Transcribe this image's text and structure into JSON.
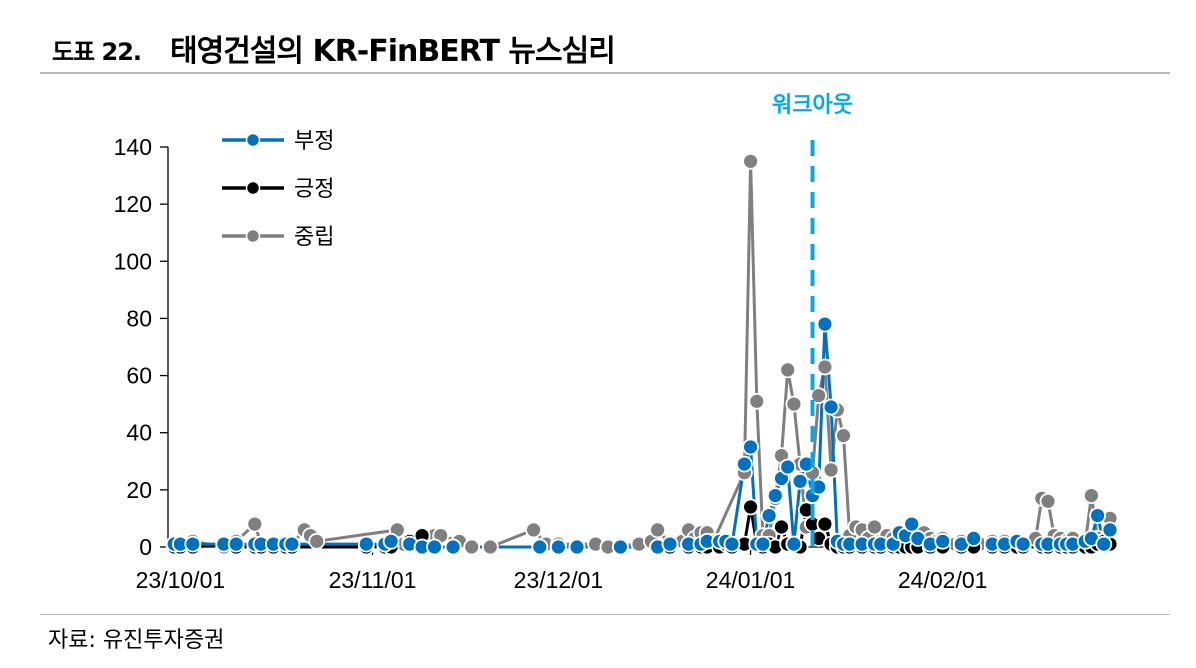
{
  "figure": {
    "number": "도표 22.",
    "title": "태영건설의 KR-FinBERT 뉴스심리",
    "source": "자료: 유진투자증권"
  },
  "colors": {
    "negative": "#0070c0",
    "positive": "#000000",
    "neutral": "#7f7f7f",
    "annotation": "#0aa8e0"
  },
  "chart_data": {
    "type": "line",
    "ylim": [
      0,
      140
    ],
    "yticks": [
      0,
      20,
      40,
      60,
      80,
      100,
      120,
      140
    ],
    "xlim": [
      "2023-09-29",
      "2024-02-28"
    ],
    "xticks": [
      {
        "date": "2023-10-01",
        "label": "23/10/01"
      },
      {
        "date": "2023-11-01",
        "label": "23/11/01"
      },
      {
        "date": "2023-12-01",
        "label": "23/12/01"
      },
      {
        "date": "2024-01-01",
        "label": "24/01/01"
      },
      {
        "date": "2024-02-01",
        "label": "24/02/01"
      }
    ],
    "legend_position": "top-left",
    "annotation": {
      "label": "워크아웃",
      "date": "2024-01-11",
      "style": "dashed-vertical"
    },
    "series": [
      {
        "name": "부정",
        "color": "#0070c0",
        "points": [
          [
            "2023-09-30",
            1
          ],
          [
            "2023-10-01",
            1
          ],
          [
            "2023-10-03",
            1
          ],
          [
            "2023-10-08",
            1
          ],
          [
            "2023-10-10",
            1
          ],
          [
            "2023-10-13",
            1
          ],
          [
            "2023-10-14",
            1
          ],
          [
            "2023-10-16",
            1
          ],
          [
            "2023-10-18",
            1
          ],
          [
            "2023-10-19",
            1
          ],
          [
            "2023-10-31",
            1
          ],
          [
            "2023-11-03",
            1
          ],
          [
            "2023-11-04",
            2
          ],
          [
            "2023-11-07",
            1
          ],
          [
            "2023-11-09",
            0
          ],
          [
            "2023-11-11",
            0
          ],
          [
            "2023-11-14",
            0
          ],
          [
            "2023-11-28",
            0
          ],
          [
            "2023-12-01",
            0
          ],
          [
            "2023-12-04",
            0
          ],
          [
            "2023-12-11",
            0
          ],
          [
            "2023-12-17",
            0
          ],
          [
            "2023-12-19",
            1
          ],
          [
            "2023-12-22",
            1
          ],
          [
            "2023-12-24",
            1
          ],
          [
            "2023-12-25",
            2
          ],
          [
            "2023-12-27",
            2
          ],
          [
            "2023-12-28",
            2
          ],
          [
            "2023-12-29",
            1
          ],
          [
            "2023-12-31",
            29
          ],
          [
            "2024-01-01",
            35
          ],
          [
            "2024-01-02",
            1
          ],
          [
            "2024-01-03",
            1
          ],
          [
            "2024-01-04",
            11
          ],
          [
            "2024-01-05",
            18
          ],
          [
            "2024-01-06",
            24
          ],
          [
            "2024-01-07",
            28
          ],
          [
            "2024-01-08",
            1
          ],
          [
            "2024-01-09",
            23
          ],
          [
            "2024-01-10",
            29
          ],
          [
            "2024-01-11",
            18
          ],
          [
            "2024-01-12",
            21
          ],
          [
            "2024-01-13",
            78
          ],
          [
            "2024-01-14",
            49
          ],
          [
            "2024-01-15",
            2
          ],
          [
            "2024-01-16",
            1
          ],
          [
            "2024-01-17",
            1
          ],
          [
            "2024-01-19",
            1
          ],
          [
            "2024-01-21",
            1
          ],
          [
            "2024-01-22",
            1
          ],
          [
            "2024-01-24",
            1
          ],
          [
            "2024-01-25",
            5
          ],
          [
            "2024-01-26",
            4
          ],
          [
            "2024-01-27",
            8
          ],
          [
            "2024-01-28",
            3
          ],
          [
            "2024-01-30",
            1
          ],
          [
            "2024-02-01",
            2
          ],
          [
            "2024-02-04",
            1
          ],
          [
            "2024-02-06",
            3
          ],
          [
            "2024-02-09",
            1
          ],
          [
            "2024-02-11",
            1
          ],
          [
            "2024-02-13",
            2
          ],
          [
            "2024-02-14",
            1
          ],
          [
            "2024-02-17",
            1
          ],
          [
            "2024-02-18",
            1
          ],
          [
            "2024-02-20",
            1
          ],
          [
            "2024-02-21",
            1
          ],
          [
            "2024-02-22",
            1
          ],
          [
            "2024-02-24",
            2
          ],
          [
            "2024-02-25",
            3
          ],
          [
            "2024-02-26",
            11
          ],
          [
            "2024-02-27",
            1
          ],
          [
            "2024-02-28",
            6
          ]
        ]
      },
      {
        "name": "긍정",
        "color": "#000000",
        "points": [
          [
            "2023-09-30",
            0
          ],
          [
            "2023-10-01",
            0
          ],
          [
            "2023-10-03",
            0
          ],
          [
            "2023-10-08",
            1
          ],
          [
            "2023-10-10",
            0
          ],
          [
            "2023-10-13",
            0
          ],
          [
            "2023-10-14",
            0
          ],
          [
            "2023-10-16",
            0
          ],
          [
            "2023-10-18",
            0
          ],
          [
            "2023-10-19",
            0
          ],
          [
            "2023-10-31",
            0
          ],
          [
            "2023-11-03",
            0
          ],
          [
            "2023-11-04",
            0
          ],
          [
            "2023-11-07",
            2
          ],
          [
            "2023-11-09",
            4
          ],
          [
            "2023-11-11",
            0
          ],
          [
            "2023-11-14",
            0
          ],
          [
            "2023-11-28",
            0
          ],
          [
            "2023-12-01",
            0
          ],
          [
            "2023-12-04",
            0
          ],
          [
            "2023-12-11",
            0
          ],
          [
            "2023-12-17",
            0
          ],
          [
            "2023-12-19",
            0
          ],
          [
            "2023-12-22",
            0
          ],
          [
            "2023-12-24",
            0
          ],
          [
            "2023-12-25",
            0
          ],
          [
            "2023-12-27",
            0
          ],
          [
            "2023-12-28",
            1
          ],
          [
            "2023-12-29",
            0
          ],
          [
            "2023-12-31",
            1
          ],
          [
            "2024-01-01",
            14
          ],
          [
            "2024-01-02",
            1
          ],
          [
            "2024-01-03",
            0
          ],
          [
            "2024-01-04",
            1
          ],
          [
            "2024-01-05",
            0
          ],
          [
            "2024-01-06",
            7
          ],
          [
            "2024-01-07",
            1
          ],
          [
            "2024-01-08",
            1
          ],
          [
            "2024-01-09",
            0
          ],
          [
            "2024-01-10",
            13
          ],
          [
            "2024-01-11",
            8
          ],
          [
            "2024-01-12",
            3
          ],
          [
            "2024-01-13",
            8
          ],
          [
            "2024-01-14",
            1
          ],
          [
            "2024-01-15",
            0
          ],
          [
            "2024-01-16",
            0
          ],
          [
            "2024-01-17",
            0
          ],
          [
            "2024-01-19",
            0
          ],
          [
            "2024-01-21",
            0
          ],
          [
            "2024-01-22",
            0
          ],
          [
            "2024-01-24",
            0
          ],
          [
            "2024-01-25",
            0
          ],
          [
            "2024-01-26",
            0
          ],
          [
            "2024-01-27",
            0
          ],
          [
            "2024-01-28",
            0
          ],
          [
            "2024-01-30",
            0
          ],
          [
            "2024-02-01",
            0
          ],
          [
            "2024-02-04",
            0
          ],
          [
            "2024-02-06",
            0
          ],
          [
            "2024-02-09",
            0
          ],
          [
            "2024-02-11",
            0
          ],
          [
            "2024-02-13",
            0
          ],
          [
            "2024-02-14",
            0
          ],
          [
            "2024-02-17",
            0
          ],
          [
            "2024-02-18",
            0
          ],
          [
            "2024-02-20",
            0
          ],
          [
            "2024-02-21",
            0
          ],
          [
            "2024-02-22",
            0
          ],
          [
            "2024-02-24",
            0
          ],
          [
            "2024-02-25",
            0
          ],
          [
            "2024-02-26",
            1
          ],
          [
            "2024-02-27",
            2
          ],
          [
            "2024-02-28",
            1
          ]
        ]
      },
      {
        "name": "중립",
        "color": "#7f7f7f",
        "points": [
          [
            "2023-09-30",
            1
          ],
          [
            "2023-10-01",
            0
          ],
          [
            "2023-10-03",
            2
          ],
          [
            "2023-10-08",
            0
          ],
          [
            "2023-10-10",
            2
          ],
          [
            "2023-10-13",
            8
          ],
          [
            "2023-10-14",
            1
          ],
          [
            "2023-10-16",
            1
          ],
          [
            "2023-10-18",
            0
          ],
          [
            "2023-10-19",
            1
          ],
          [
            "2023-10-21",
            6
          ],
          [
            "2023-10-22",
            4
          ],
          [
            "2023-10-23",
            2
          ],
          [
            "2023-11-05",
            6
          ],
          [
            "2023-11-06",
            1
          ],
          [
            "2023-11-10",
            2
          ],
          [
            "2023-11-11",
            4
          ],
          [
            "2023-11-12",
            4
          ],
          [
            "2023-11-15",
            2
          ],
          [
            "2023-11-17",
            0
          ],
          [
            "2023-11-20",
            0
          ],
          [
            "2023-11-27",
            6
          ],
          [
            "2023-11-29",
            1
          ],
          [
            "2023-12-01",
            1
          ],
          [
            "2023-12-07",
            1
          ],
          [
            "2023-12-09",
            0
          ],
          [
            "2023-12-14",
            1
          ],
          [
            "2023-12-16",
            2
          ],
          [
            "2023-12-17",
            6
          ],
          [
            "2023-12-19",
            1
          ],
          [
            "2023-12-21",
            2
          ],
          [
            "2023-12-22",
            6
          ],
          [
            "2023-12-23",
            3
          ],
          [
            "2023-12-24",
            5
          ],
          [
            "2023-12-25",
            5
          ],
          [
            "2023-12-26",
            2
          ],
          [
            "2023-12-31",
            26
          ],
          [
            "2024-01-01",
            135
          ],
          [
            "2024-01-02",
            51
          ],
          [
            "2024-01-03",
            4
          ],
          [
            "2024-01-04",
            4
          ],
          [
            "2024-01-05",
            17
          ],
          [
            "2024-01-06",
            32
          ],
          [
            "2024-01-07",
            62
          ],
          [
            "2024-01-08",
            50
          ],
          [
            "2024-01-09",
            29
          ],
          [
            "2024-01-10",
            7
          ],
          [
            "2024-01-11",
            26
          ],
          [
            "2024-01-12",
            53
          ],
          [
            "2024-01-13",
            63
          ],
          [
            "2024-01-14",
            27
          ],
          [
            "2024-01-15",
            48
          ],
          [
            "2024-01-16",
            39
          ],
          [
            "2024-01-17",
            4
          ],
          [
            "2024-01-18",
            7
          ],
          [
            "2024-01-19",
            6
          ],
          [
            "2024-01-20",
            3
          ],
          [
            "2024-01-21",
            7
          ],
          [
            "2024-01-22",
            2
          ],
          [
            "2024-01-23",
            4
          ],
          [
            "2024-01-24",
            3
          ],
          [
            "2024-01-26",
            1
          ],
          [
            "2024-01-28",
            2
          ],
          [
            "2024-01-29",
            5
          ],
          [
            "2024-01-30",
            3
          ],
          [
            "2024-01-31",
            2
          ],
          [
            "2024-02-01",
            3
          ],
          [
            "2024-02-03",
            1
          ],
          [
            "2024-02-04",
            2
          ],
          [
            "2024-02-06",
            2
          ],
          [
            "2024-02-07",
            1
          ],
          [
            "2024-02-09",
            2
          ],
          [
            "2024-02-11",
            2
          ],
          [
            "2024-02-13",
            1
          ],
          [
            "2024-02-16",
            3
          ],
          [
            "2024-02-17",
            17
          ],
          [
            "2024-02-18",
            16
          ],
          [
            "2024-02-19",
            4
          ],
          [
            "2024-02-20",
            3
          ],
          [
            "2024-02-21",
            2
          ],
          [
            "2024-02-22",
            3
          ],
          [
            "2024-02-24",
            1
          ],
          [
            "2024-02-25",
            18
          ],
          [
            "2024-02-26",
            3
          ],
          [
            "2024-02-27",
            2
          ],
          [
            "2024-02-28",
            10
          ]
        ]
      }
    ]
  }
}
